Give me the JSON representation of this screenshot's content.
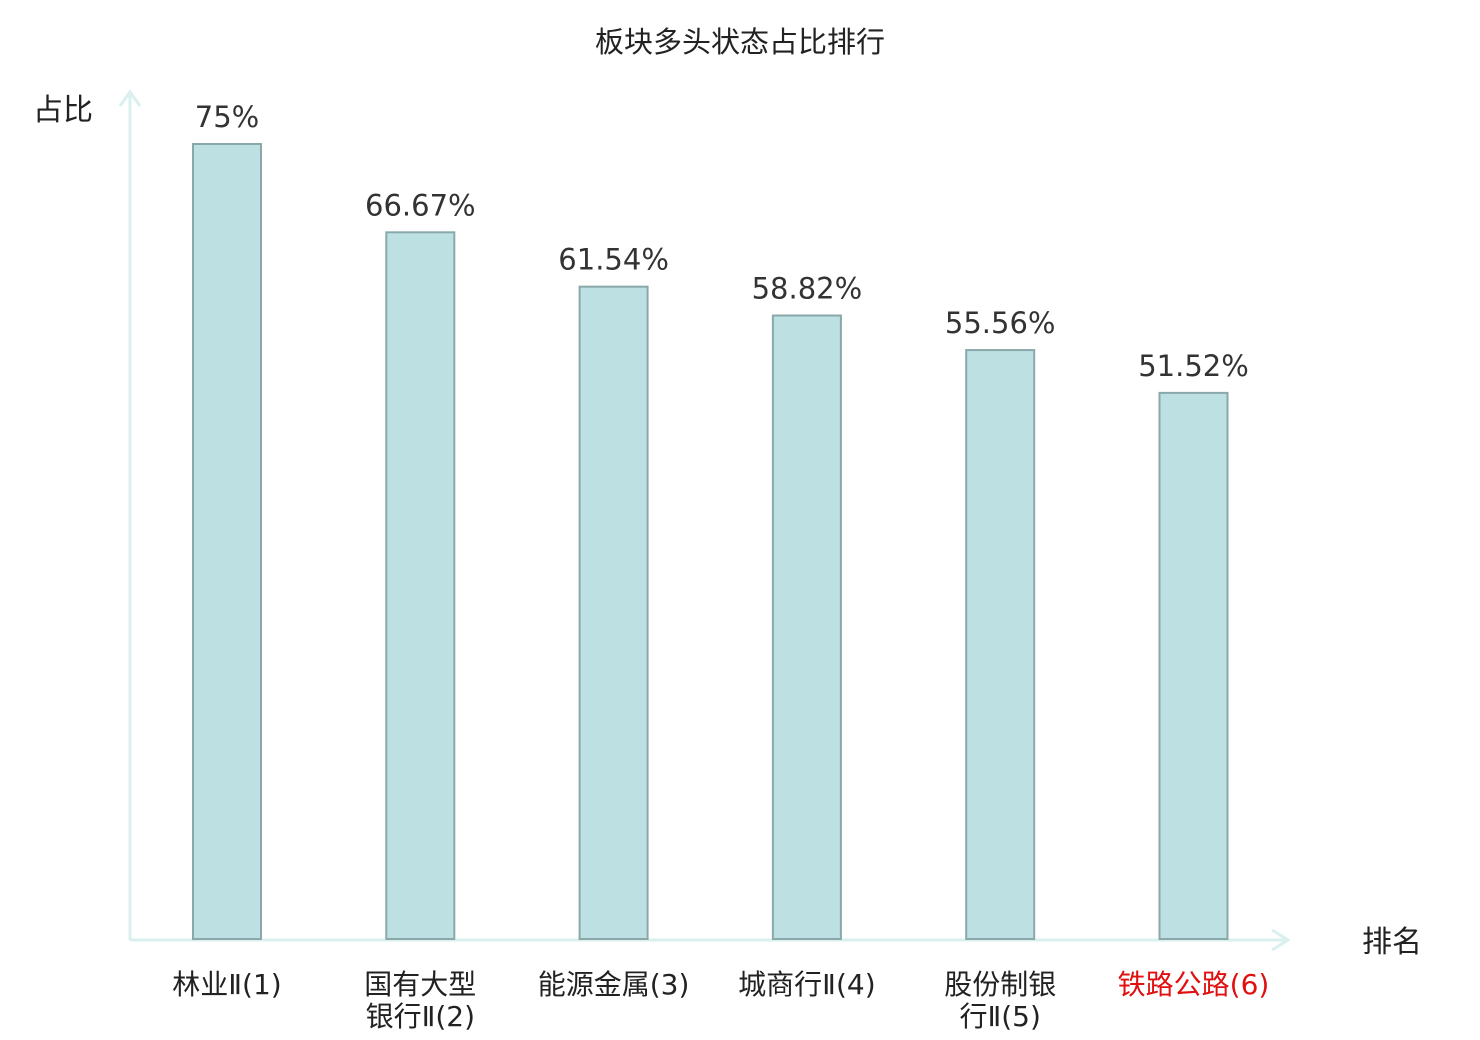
{
  "chart_data": {
    "type": "bar",
    "title": "板块多头状态占比排行",
    "ylabel": "占比",
    "xlabel": "排名",
    "categories": [
      [
        "林业Ⅱ(1)"
      ],
      [
        "国有大型",
        "银行Ⅱ(2)"
      ],
      [
        "能源金属(3)"
      ],
      [
        "城商行Ⅱ(4)"
      ],
      [
        "股份制银",
        "行Ⅱ(5)"
      ],
      [
        "铁路公路(6)"
      ]
    ],
    "values": [
      75,
      66.67,
      61.54,
      58.82,
      55.56,
      51.52
    ],
    "value_labels": [
      "75%",
      "66.67%",
      "61.54%",
      "58.82%",
      "55.56%",
      "51.52%"
    ],
    "highlight_index": 5,
    "ylim": [
      0,
      80
    ],
    "grid": false,
    "colors": {
      "bar_fill": "#bde0e2",
      "bar_stroke": "#8aa8aa",
      "axis": "#d9f0ee",
      "text": "#222222",
      "value_label": "#333333",
      "highlight": "#e01010"
    }
  }
}
